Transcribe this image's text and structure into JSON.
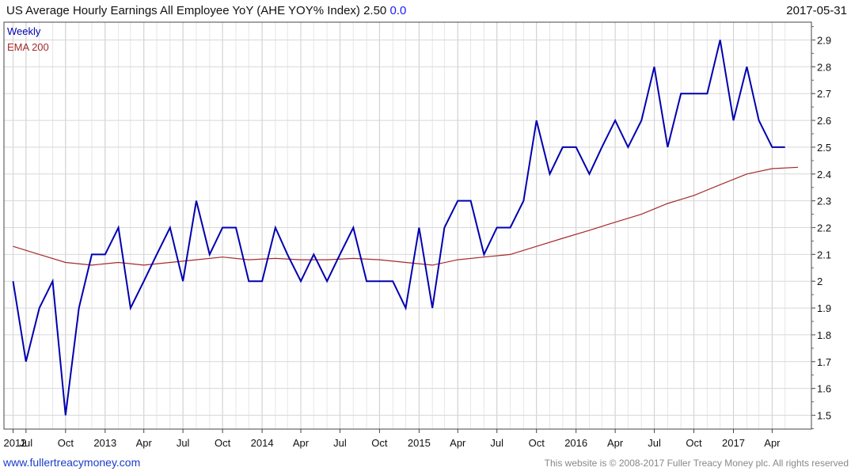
{
  "header": {
    "title": "US Average Hourly Earnings All Employee YoY (AHE YOY% Index) 2.50",
    "change": "0.0",
    "date": "2017-05-31"
  },
  "footer": {
    "website": "www.fullertreacymoney.com",
    "copyright": "This website is © 2008-2017 Fuller Treacy Money plc. All rights reserved"
  },
  "colors": {
    "weekly": "#0000b0",
    "ema": "#a52a2a",
    "change": "#1a1aff"
  },
  "chart_data": {
    "type": "line",
    "title": "US Average Hourly Earnings All Employee YoY (AHE YOY% Index)",
    "ylim": [
      1.45,
      2.95
    ],
    "y_ticks": [
      1.5,
      1.6,
      1.7,
      1.8,
      1.9,
      2,
      2.1,
      2.2,
      2.3,
      2.4,
      2.5,
      2.6,
      2.7,
      2.8,
      2.9
    ],
    "y_tick_labels": [
      "1.5",
      "1.6",
      "1.7",
      "1.8",
      "1.9",
      "2",
      "2.1",
      "2.2",
      "2.3",
      "2.4",
      "2.5",
      "2.6",
      "2.7",
      "2.8",
      "2.9"
    ],
    "x_range": [
      "2012-05-31",
      "2017-05-31"
    ],
    "x_ticks": [
      "2012-06-01",
      "2012-07-01",
      "2012-10-01",
      "2013-01-01",
      "2013-04-01",
      "2013-07-01",
      "2013-10-01",
      "2014-01-01",
      "2014-04-01",
      "2014-07-01",
      "2014-10-01",
      "2015-01-01",
      "2015-04-01",
      "2015-07-01",
      "2015-10-01",
      "2016-01-01",
      "2016-04-01",
      "2016-07-01",
      "2016-10-01",
      "2017-01-01",
      "2017-04-01"
    ],
    "x_tick_labels": [
      "2012",
      "Jul",
      "Oct",
      "2013",
      "Apr",
      "Jul",
      "Oct",
      "2014",
      "Apr",
      "Jul",
      "Oct",
      "2015",
      "Apr",
      "Jul",
      "Oct",
      "2016",
      "Apr",
      "Jul",
      "Oct",
      "2017",
      "Apr"
    ],
    "grid": true,
    "legend_position": "top-left",
    "series": [
      {
        "name": "Weekly",
        "x": [
          "2012-06-01",
          "2012-07-01",
          "2012-08-01",
          "2012-09-01",
          "2012-10-01",
          "2012-11-01",
          "2012-12-01",
          "2013-01-01",
          "2013-02-01",
          "2013-03-01",
          "2013-04-01",
          "2013-05-01",
          "2013-06-01",
          "2013-07-01",
          "2013-08-01",
          "2013-09-01",
          "2013-10-01",
          "2013-11-01",
          "2013-12-01",
          "2014-01-01",
          "2014-02-01",
          "2014-03-01",
          "2014-04-01",
          "2014-05-01",
          "2014-06-01",
          "2014-07-01",
          "2014-08-01",
          "2014-09-01",
          "2014-10-01",
          "2014-11-01",
          "2014-12-01",
          "2015-01-01",
          "2015-02-01",
          "2015-03-01",
          "2015-04-01",
          "2015-05-01",
          "2015-06-01",
          "2015-07-01",
          "2015-08-01",
          "2015-09-01",
          "2015-10-01",
          "2015-11-01",
          "2015-12-01",
          "2016-01-01",
          "2016-02-01",
          "2016-03-01",
          "2016-04-01",
          "2016-05-01",
          "2016-06-01",
          "2016-07-01",
          "2016-08-01",
          "2016-09-01",
          "2016-10-01",
          "2016-11-01",
          "2016-12-01",
          "2017-01-01",
          "2017-02-01",
          "2017-03-01",
          "2017-04-01",
          "2017-05-01"
        ],
        "values": [
          2.0,
          1.7,
          1.9,
          2.0,
          1.5,
          1.9,
          2.1,
          2.1,
          2.2,
          1.9,
          2.0,
          2.1,
          2.2,
          2.0,
          2.3,
          2.1,
          2.2,
          2.2,
          2.0,
          2.0,
          2.2,
          2.1,
          2.0,
          2.1,
          2.0,
          2.1,
          2.2,
          2.0,
          2.0,
          2.0,
          1.9,
          2.2,
          1.9,
          2.2,
          2.3,
          2.3,
          2.1,
          2.2,
          2.2,
          2.3,
          2.6,
          2.4,
          2.5,
          2.5,
          2.4,
          2.5,
          2.6,
          2.5,
          2.6,
          2.8,
          2.5,
          2.7,
          2.7,
          2.7,
          2.9,
          2.6,
          2.8,
          2.6,
          2.5,
          2.5
        ]
      },
      {
        "name": "EMA 200",
        "x": [
          "2012-06-01",
          "2012-08-01",
          "2012-10-01",
          "2012-12-01",
          "2013-02-01",
          "2013-04-01",
          "2013-06-01",
          "2013-08-01",
          "2013-10-01",
          "2013-12-01",
          "2014-02-01",
          "2014-04-01",
          "2014-06-01",
          "2014-08-01",
          "2014-10-01",
          "2014-12-01",
          "2015-02-01",
          "2015-04-01",
          "2015-06-01",
          "2015-08-01",
          "2015-10-01",
          "2015-12-01",
          "2016-02-01",
          "2016-04-01",
          "2016-06-01",
          "2016-08-01",
          "2016-10-01",
          "2016-12-01",
          "2017-02-01",
          "2017-04-01",
          "2017-05-31"
        ],
        "values": [
          2.13,
          2.1,
          2.07,
          2.06,
          2.07,
          2.06,
          2.07,
          2.08,
          2.09,
          2.08,
          2.085,
          2.08,
          2.08,
          2.085,
          2.08,
          2.07,
          2.06,
          2.08,
          2.09,
          2.1,
          2.13,
          2.16,
          2.19,
          2.22,
          2.25,
          2.29,
          2.32,
          2.36,
          2.4,
          2.42,
          2.425
        ]
      }
    ]
  }
}
